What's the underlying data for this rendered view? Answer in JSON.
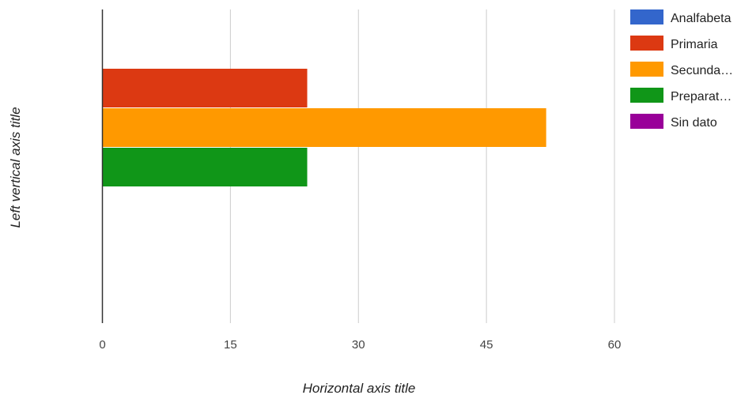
{
  "chart_data": {
    "type": "bar",
    "orientation": "horizontal",
    "xlabel": "Horizontal axis title",
    "ylabel": "Left vertical axis title",
    "xlim": [
      0,
      60
    ],
    "xticks": [
      "0",
      "15",
      "30",
      "45",
      "60"
    ],
    "grid": "vertical",
    "legend_position": "right",
    "series": [
      {
        "name": "Analfabeta",
        "legend_label": "Analfabeta",
        "color": "#3366cc",
        "value": 0
      },
      {
        "name": "Primaria",
        "legend_label": "Primaria",
        "color": "#dc3912",
        "value": 24
      },
      {
        "name": "Secundaria",
        "legend_label": "Secunda…",
        "color": "#ff9900",
        "value": 52
      },
      {
        "name": "Preparatoria",
        "legend_label": "Preparat…",
        "color": "#109618",
        "value": 24
      },
      {
        "name": "Sin dato",
        "legend_label": "Sin dato",
        "color": "#990099",
        "value": 0
      }
    ]
  }
}
